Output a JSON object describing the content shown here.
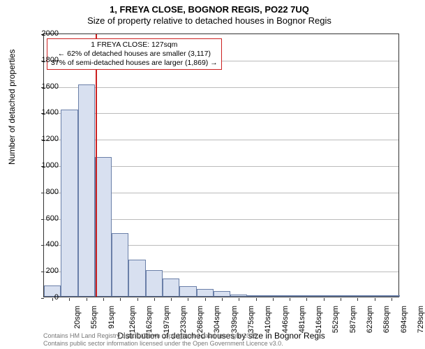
{
  "title_main": "1, FREYA CLOSE, BOGNOR REGIS, PO22 7UQ",
  "title_sub": "Size of property relative to detached houses in Bognor Regis",
  "chart": {
    "type": "histogram",
    "x_categories": [
      "20sqm",
      "55sqm",
      "91sqm",
      "126sqm",
      "162sqm",
      "197sqm",
      "233sqm",
      "268sqm",
      "304sqm",
      "339sqm",
      "375sqm",
      "410sqm",
      "446sqm",
      "481sqm",
      "516sqm",
      "552sqm",
      "587sqm",
      "623sqm",
      "658sqm",
      "694sqm",
      "729sqm"
    ],
    "bar_values": [
      85,
      1420,
      1610,
      1060,
      480,
      280,
      200,
      140,
      80,
      60,
      40,
      18,
      10,
      5,
      3,
      2,
      2,
      1,
      1,
      1,
      0
    ],
    "ylim": [
      0,
      2000
    ],
    "ytick_step": 200,
    "yticks": [
      0,
      200,
      400,
      600,
      800,
      1000,
      1200,
      1400,
      1600,
      1800,
      2000
    ],
    "bar_fill": "#d8e0f0",
    "bar_border": "#6a7fa8",
    "grid_color": "#bbbbbb",
    "axis_color": "#333333",
    "background": "#ffffff",
    "ref_line_color": "#cc2020",
    "ref_line_x_index": 3.03,
    "annotation": {
      "line1": "1 FREYA CLOSE: 127sqm",
      "line2": "← 62% of detached houses are smaller (3,117)",
      "line3": "37% of semi-detached houses are larger (1,869) →",
      "border_color": "#cc2020"
    },
    "y_label": "Number of detached properties",
    "x_label": "Distribution of detached houses by size in Bognor Regis",
    "label_fontsize": 12,
    "tick_fontsize": 11,
    "annot_fontsize": 10.5
  },
  "footer_line1": "Contains HM Land Registry data © Crown copyright and database right 2025.",
  "footer_line2": "Contains public sector information licensed under the Open Government Licence v3.0."
}
